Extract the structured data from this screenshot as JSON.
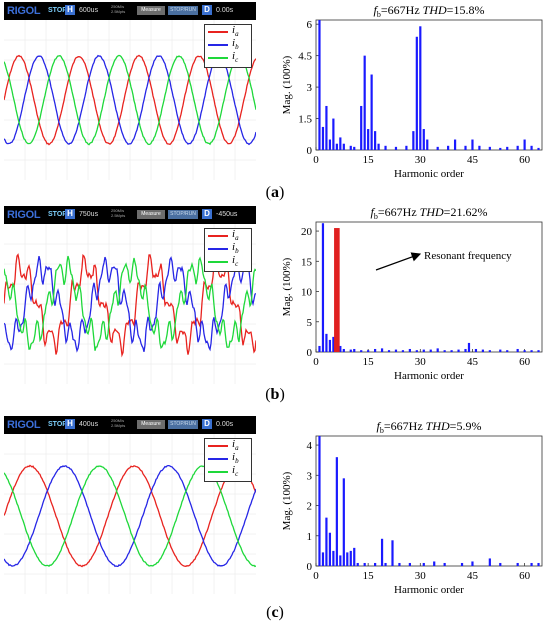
{
  "panels": [
    {
      "label": "a",
      "scope": {
        "brand": "RIGOL",
        "status": "STOP",
        "h_key": "H",
        "h_value": "600us",
        "rate": "250M/s 2.5Mpts",
        "measure": "Measure",
        "trig_mode": "STOP/RUN",
        "d_key": "D",
        "d_value": "0.00s",
        "legend": [
          {
            "name": "i",
            "sub": "a",
            "color": "#e8231f"
          },
          {
            "name": "i",
            "sub": "b",
            "color": "#2626e6"
          },
          {
            "name": "i",
            "sub": "c",
            "color": "#1ed83a"
          }
        ]
      }
    },
    {
      "label": "b",
      "scope": {
        "brand": "RIGOL",
        "status": "STOP",
        "h_key": "H",
        "h_value": "750us",
        "rate": "250M/s 2.5Mpts",
        "measure": "Measure",
        "trig_mode": "STOP/RUN",
        "d_key": "D",
        "d_value": "-450us",
        "legend": [
          {
            "name": "i",
            "sub": "a",
            "color": "#e8231f"
          },
          {
            "name": "i",
            "sub": "b",
            "color": "#2626e6"
          },
          {
            "name": "i",
            "sub": "c",
            "color": "#1ed83a"
          }
        ]
      }
    },
    {
      "label": "c",
      "scope": {
        "brand": "RIGOL",
        "status": "STOP",
        "h_key": "H",
        "h_value": "400us",
        "rate": "250M/s 2.5Mpts",
        "measure": "Measure",
        "trig_mode": "STOP/RUN",
        "d_key": "D",
        "d_value": "0.00s",
        "legend": [
          {
            "name": "i",
            "sub": "a",
            "color": "#e8231f"
          },
          {
            "name": "i",
            "sub": "b",
            "color": "#2626e6"
          },
          {
            "name": "i",
            "sub": "c",
            "color": "#1ed83a"
          }
        ]
      }
    }
  ],
  "chart_data": [
    {
      "type": "bar",
      "title": "fb=667Hz THD=15.8%",
      "title_parts": {
        "f": "f",
        "sub": "b",
        "mid": "=667Hz ",
        "thd": "THD",
        "value": "=15.8%"
      },
      "xlabel": "Harmonic order",
      "ylabel": "Mag. (100%)",
      "xlim": [
        0,
        65
      ],
      "ylim": [
        0,
        6.2
      ],
      "xticks": [
        0,
        15,
        30,
        45,
        60
      ],
      "yticks": [
        0,
        1.5,
        3,
        4.5,
        6
      ],
      "ytick_labels": [
        "0",
        "1.5",
        "3",
        "4.5",
        "6"
      ],
      "bar_color": "#1a1aff",
      "series": [
        {
          "x": [
            1,
            2,
            3,
            4,
            5,
            6,
            7,
            8,
            10,
            11,
            13,
            14,
            15,
            16,
            17,
            18,
            20,
            23,
            26,
            28,
            29,
            30,
            31,
            32,
            35,
            38,
            40,
            43,
            45,
            47,
            50,
            53,
            55,
            58,
            60,
            62,
            64
          ],
          "values": [
            6.3,
            1.1,
            2.1,
            0.5,
            1.5,
            0.3,
            0.6,
            0.3,
            0.2,
            0.15,
            2.1,
            4.5,
            1.0,
            3.6,
            0.9,
            0.3,
            0.2,
            0.15,
            0.2,
            0.9,
            5.4,
            5.9,
            1.0,
            0.5,
            0.15,
            0.2,
            0.5,
            0.2,
            0.5,
            0.2,
            0.15,
            0.1,
            0.15,
            0.2,
            0.5,
            0.2,
            0.1
          ]
        }
      ]
    },
    {
      "type": "bar",
      "title": "fb=667Hz THD=21.62%",
      "title_parts": {
        "f": "f",
        "sub": "b",
        "mid": "=667Hz ",
        "thd": "THD",
        "value": "=21.62%"
      },
      "xlabel": "Harmonic order",
      "ylabel": "Mag. (100%)",
      "xlim": [
        0,
        65
      ],
      "ylim": [
        0,
        21.5
      ],
      "xticks": [
        0,
        15,
        30,
        45,
        60
      ],
      "yticks": [
        0,
        5,
        10,
        15,
        20
      ],
      "ytick_labels": [
        "0",
        "5",
        "10",
        "15",
        "20"
      ],
      "bar_color": "#1a1aff",
      "highlight": {
        "x": 6,
        "value": 20.5,
        "color": "#e02020"
      },
      "annotation": "Resonant frequency",
      "series": [
        {
          "x": [
            1,
            2,
            3,
            4,
            5,
            7,
            8,
            10,
            11,
            13,
            15,
            17,
            19,
            21,
            23,
            25,
            27,
            29,
            31,
            33,
            35,
            37,
            39,
            41,
            43,
            44,
            46,
            48,
            50,
            53,
            55,
            58,
            60,
            62,
            64
          ],
          "values": [
            1.0,
            21.3,
            3.0,
            2.0,
            2.5,
            1.0,
            0.5,
            0.4,
            0.5,
            0.3,
            0.3,
            0.5,
            0.6,
            0.3,
            0.4,
            0.3,
            0.5,
            0.3,
            0.4,
            0.4,
            0.6,
            0.3,
            0.3,
            0.4,
            0.5,
            1.5,
            0.5,
            0.4,
            0.3,
            0.4,
            0.3,
            0.5,
            0.3,
            0.3,
            0.3
          ]
        }
      ]
    },
    {
      "type": "bar",
      "title": "fb=667Hz THD=5.9%",
      "title_parts": {
        "f": "f",
        "sub": "b",
        "mid": "=667Hz ",
        "thd": "THD",
        "value": "=5.9%"
      },
      "xlabel": "Harmonic order",
      "ylabel": "Mag. (100%)",
      "xlim": [
        0,
        65
      ],
      "ylim": [
        0,
        4.3
      ],
      "xticks": [
        0,
        15,
        30,
        45,
        60
      ],
      "yticks": [
        0,
        1,
        2,
        3,
        4
      ],
      "ytick_labels": [
        "0",
        "1",
        "2",
        "3",
        "4"
      ],
      "bar_color": "#1a1aff",
      "series": [
        {
          "x": [
            1,
            2,
            3,
            4,
            5,
            6,
            7,
            8,
            9,
            10,
            11,
            12,
            14,
            17,
            19,
            20,
            22,
            24,
            27,
            31,
            34,
            37,
            42,
            45,
            50,
            53,
            58,
            62,
            64
          ],
          "values": [
            4.3,
            0.45,
            1.6,
            1.1,
            0.5,
            3.6,
            0.35,
            2.9,
            0.45,
            0.5,
            0.6,
            0.1,
            0.1,
            0.1,
            0.9,
            0.1,
            0.85,
            0.1,
            0.1,
            0.1,
            0.15,
            0.1,
            0.1,
            0.15,
            0.25,
            0.1,
            0.1,
            0.1,
            0.1
          ]
        }
      ]
    }
  ]
}
